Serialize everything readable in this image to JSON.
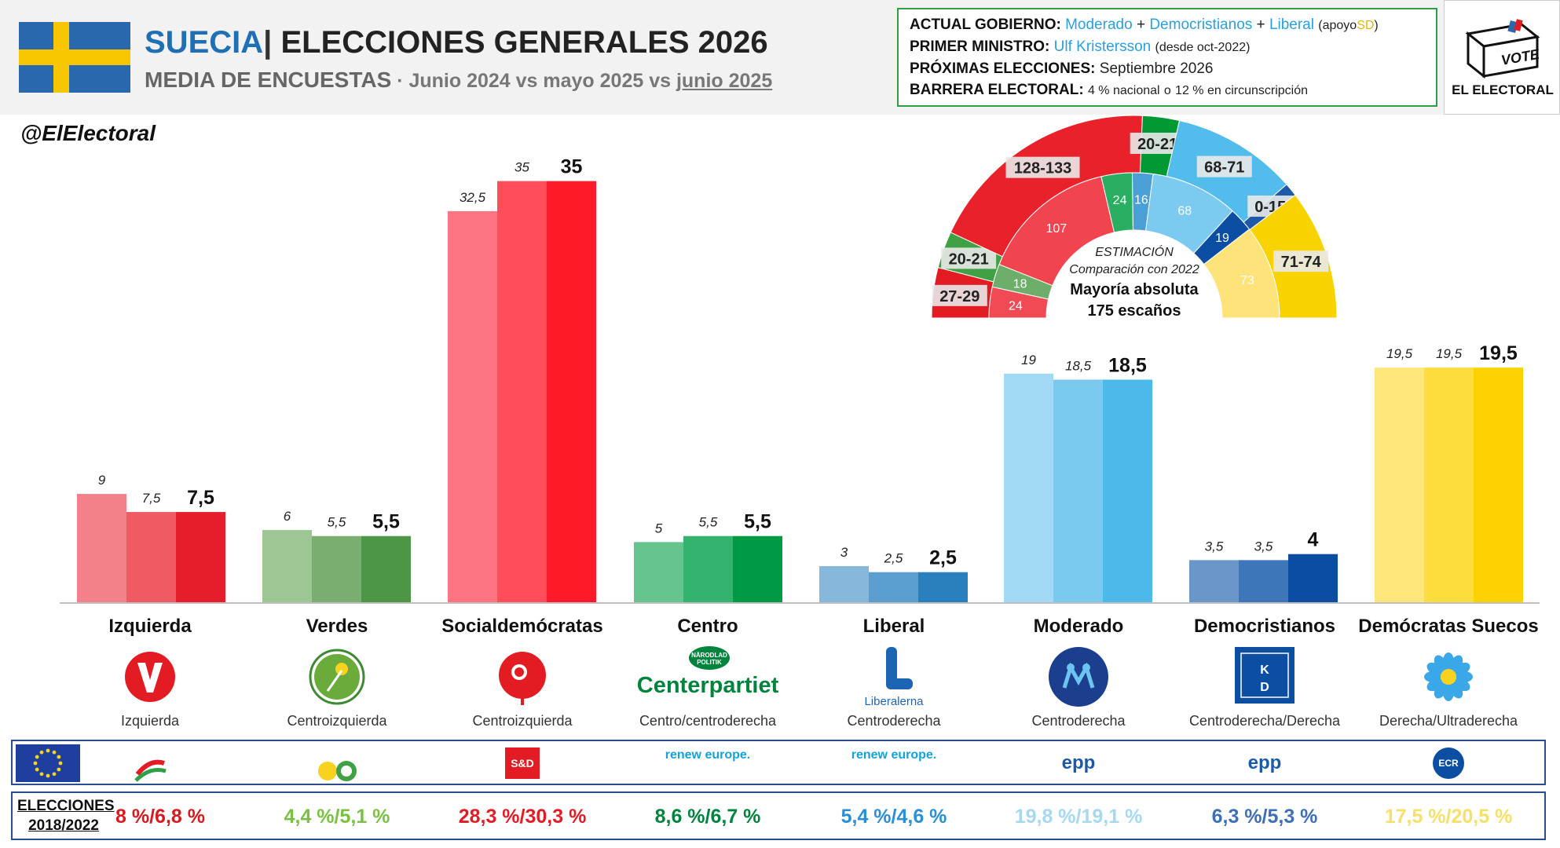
{
  "header": {
    "country": "SUECIA",
    "separator": "|",
    "title": "ELECCIONES GENERALES 2026",
    "subtitle": "MEDIA DE ENCUESTAS",
    "subtitle_dates": " · Junio 2024 vs mayo 2025 vs ",
    "subtitle_current": "junio 2025",
    "handle": "@ElElectoral"
  },
  "infobox": {
    "gov_label": "ACTUAL GOBIERNO:",
    "gov_p1": "Moderado",
    "plus": "+",
    "gov_p2": "Democristianos",
    "gov_p3": "Liberal",
    "gov_support_pre": "(apoyo",
    "gov_support_party": "SD",
    "gov_support_post": ")",
    "pm_label": "PRIMER MINISTRO:",
    "pm_name": "Ulf Kristersson",
    "pm_since": "(desde oct-2022)",
    "next_label": "PRÓXIMAS ELECCIONES:",
    "next_value": "Septiembre 2026",
    "barrier_label": "BARRERA ELECTORAL:",
    "barrier_value_a": "4 % nacional",
    "barrier_mid": "o",
    "barrier_value_b": "12 % en circunscripción"
  },
  "logo": {
    "vote": "VOTE",
    "name": "EL ELECTORAL"
  },
  "hemicycle": {
    "title": "ESTIMACIÓN",
    "comparison": "Comparación con 2022",
    "majority": "Mayoría absoluta",
    "seats": "175 escaños",
    "outer": [
      {
        "party": "Izquierda",
        "label": "27-29",
        "mid": 28,
        "color": "#e31b23"
      },
      {
        "party": "Verdes",
        "label": "20-21",
        "mid": 20.5,
        "color": "#3fa044"
      },
      {
        "party": "Socialdemócratas",
        "label": "128-133",
        "mid": 130.5,
        "color": "#e8212b"
      },
      {
        "party": "Centro",
        "label": "20-21",
        "mid": 20.5,
        "color": "#009933"
      },
      {
        "party": "Moderado",
        "label": "68-71",
        "mid": 69.5,
        "color": "#52bdec"
      },
      {
        "party": "Liberal",
        "label": "0-15",
        "mid": 7.5,
        "color": "#1e5aa8"
      },
      {
        "party": "Demócratas Suecos",
        "label": "71-74",
        "mid": 72.5,
        "color": "#f9d300"
      }
    ],
    "inner": [
      {
        "party": "Izquierda",
        "label": "24",
        "seats": 24,
        "color": "#f04b55"
      },
      {
        "party": "Verdes",
        "label": "18",
        "seats": 18,
        "color": "#6cae6a"
      },
      {
        "party": "Socialdemócratas",
        "label": "107",
        "seats": 107,
        "color": "#f2444f"
      },
      {
        "party": "Centro",
        "label": "24",
        "seats": 24,
        "color": "#2aae62"
      },
      {
        "party": "Liberal",
        "label": "16",
        "seats": 16,
        "color": "#4a9fd6"
      },
      {
        "party": "Moderado",
        "label": "68",
        "seats": 68,
        "color": "#7ccaf0"
      },
      {
        "party": "Democristianos",
        "label": "19",
        "seats": 19,
        "color": "#0b4ea2"
      },
      {
        "party": "Demócratas Suecos",
        "label": "73",
        "seats": 73,
        "color": "#fde37a"
      }
    ]
  },
  "chart_data": {
    "type": "bar",
    "title": "MEDIA DE ENCUESTAS",
    "categories": [
      "Izquierda",
      "Verdes",
      "Socialdemócratas",
      "Centro",
      "Liberal",
      "Moderado",
      "Democristianos",
      "Demócratas Suecos"
    ],
    "series": [
      {
        "values": [
          9,
          6,
          32.5,
          5,
          3,
          19,
          3.5,
          19.5
        ]
      },
      {
        "values": [
          7.5,
          5.5,
          35,
          5.5,
          2.5,
          18.5,
          3.5,
          19.5
        ]
      },
      {
        "values": [
          7.5,
          5.5,
          35,
          5.5,
          2.5,
          18.5,
          4,
          19.5
        ]
      }
    ],
    "labels": [
      [
        "9",
        "6",
        "32,5",
        "5",
        "3",
        "19",
        "3,5",
        "19,5"
      ],
      [
        "7,5",
        "5,5",
        "35",
        "5,5",
        "2,5",
        "18,5",
        "3,5",
        "19,5"
      ],
      [
        "7,5",
        "5,5",
        "35",
        "5,5",
        "2,5",
        "18,5",
        "4",
        "19,5"
      ]
    ],
    "colors": [
      [
        "#f4808a",
        "#f05a63",
        "#e61e2b"
      ],
      [
        "#9cc794",
        "#7aad70",
        "#4d9645"
      ],
      [
        "#ff7480",
        "#ff4d5a",
        "#ff1a2a"
      ],
      [
        "#66c58e",
        "#33b36d",
        "#009a44"
      ],
      [
        "#86b8dc",
        "#5a9fcf",
        "#2a7fbd"
      ],
      [
        "#a2d9f5",
        "#7cc9f0",
        "#4db9ea"
      ],
      [
        "#6b96c9",
        "#3e77b9",
        "#0a4da3"
      ],
      [
        "#fde67a",
        "#fddc3d",
        "#fcd200"
      ]
    ],
    "ylim": [
      0,
      37
    ]
  },
  "parties": [
    {
      "name": "Izquierda",
      "ideology": "Izquierda",
      "elec": "8 %/6,8 %",
      "elec_color": "#d71920",
      "logo": "v-logo"
    },
    {
      "name": "Verdes",
      "ideology": "Centroizquierda",
      "elec": "4,4 %/5,1 %",
      "elec_color": "#7ac143",
      "logo": "dandelion-logo"
    },
    {
      "name": "Socialdemócratas",
      "ideology": "Centroizquierda",
      "elec": "28,3 %/30,3 %",
      "elec_color": "#e31b23",
      "logo": "rose-logo"
    },
    {
      "name": "Centro",
      "ideology": "Centro/centroderecha",
      "elec": "8,6 %/6,7 %",
      "elec_color": "#00843d",
      "logo": "centerpartiet-logo",
      "logo_text": "Centerpartiet",
      "logo_badge_1": "NÄRODLAD",
      "logo_badge_2": "POLITIK"
    },
    {
      "name": "Liberal",
      "ideology": "Centroderecha",
      "elec": "5,4 %/4,6 %",
      "elec_color": "#2a8fd6",
      "logo": "liberalerna-logo",
      "logo_text": "Liberalerna"
    },
    {
      "name": "Moderado",
      "ideology": "Centroderecha",
      "elec": "19,8 %/19,1 %",
      "elec_color": "#a6d8f2",
      "logo": "moderaterna-logo"
    },
    {
      "name": "Democristianos",
      "ideology": "Centroderecha/Derecha",
      "elec": "6,3 %/5,3 %",
      "elec_color": "#3d6fb6",
      "logo": "kd-logo",
      "logo_text_1": "K",
      "logo_text_2": "D"
    },
    {
      "name": "Demócratas Suecos",
      "ideology": "Derecha/Ultraderecha",
      "elec": "17,5 %/20,5 %",
      "elec_color": "#f7e06a",
      "logo": "sd-flower-logo"
    }
  ],
  "eu_groups": [
    "left-logo",
    "greens-efa-logo",
    "S&D",
    "renew europe.",
    "renew europe.",
    "epp",
    "epp",
    "ECR"
  ],
  "elections_label_1": "ELECCIONES",
  "elections_label_2": "2018/2022"
}
